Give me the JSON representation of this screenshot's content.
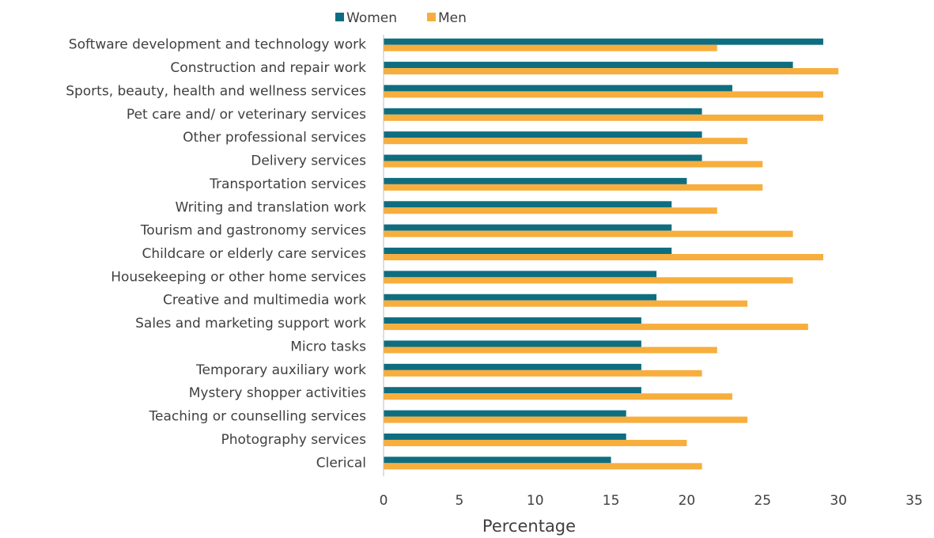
{
  "chart_data": {
    "type": "hbar",
    "categories": [
      "Software development and technology work",
      "Construction and repair work",
      "Sports, beauty, health and wellness services",
      "Pet care and/ or veterinary services",
      "Other professional services",
      "Delivery services",
      "Transportation services",
      "Writing and translation work",
      "Tourism and gastronomy services",
      "Childcare or elderly care services",
      "Housekeeping or other home services",
      "Creative and multimedia work",
      "Sales and marketing support work",
      "Micro tasks",
      "Temporary auxiliary work",
      "Mystery shopper activities",
      "Teaching or counselling services",
      "Photography services",
      "Clerical"
    ],
    "series": [
      {
        "name": "Women",
        "color": "#0e6e80",
        "values": [
          29,
          27,
          23,
          21,
          21,
          21,
          20,
          19,
          19,
          19,
          18,
          18,
          17,
          17,
          17,
          17,
          16,
          16,
          15
        ]
      },
      {
        "name": "Men",
        "color": "#f7ae3d",
        "values": [
          22,
          30,
          29,
          29,
          24,
          25,
          25,
          22,
          27,
          29,
          27,
          24,
          28,
          22,
          21,
          23,
          24,
          20,
          21
        ]
      }
    ],
    "xlabel": "Percentage",
    "xlim": [
      0,
      35
    ],
    "xticks": [
      0,
      5,
      10,
      15,
      20,
      25,
      30,
      35
    ],
    "grid": false,
    "legend": "top"
  }
}
